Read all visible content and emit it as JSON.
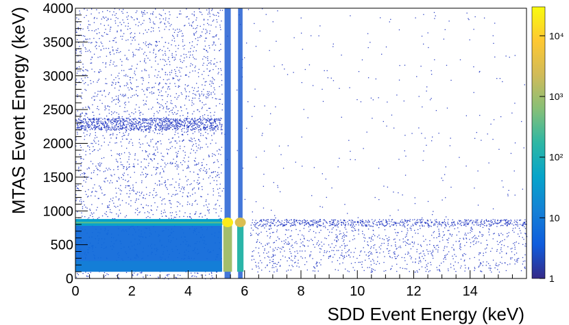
{
  "chart_data": {
    "type": "heatmap",
    "title": "",
    "xlabel": "SDD Event Energy (keV)",
    "ylabel": "MTAS Event Energy (keV)",
    "xlim": [
      0,
      16
    ],
    "ylim": [
      0,
      4000
    ],
    "x_ticks": [
      0,
      2,
      4,
      6,
      8,
      10,
      12,
      14
    ],
    "y_ticks": [
      0,
      500,
      1000,
      1500,
      2000,
      2500,
      3000,
      3500,
      4000
    ],
    "colorbar": {
      "scale": "log",
      "range": [
        1,
        30000
      ],
      "ticks": [
        {
          "value": 1,
          "label": "1"
        },
        {
          "value": 10,
          "label": "10"
        },
        {
          "value": 100,
          "label": "10²"
        },
        {
          "value": 1000,
          "label": "10³"
        },
        {
          "value": 10000,
          "label": "10⁴"
        }
      ],
      "colors": [
        "#352a87",
        "#0f5cdd",
        "#1481d6",
        "#06a4ca",
        "#2eb7a4",
        "#87bf77",
        "#d1bb59",
        "#fec832",
        "#f9fb0e"
      ]
    },
    "features": [
      {
        "kind": "band",
        "x_range": [
          0,
          16
        ],
        "y_range": [
          780,
          880
        ],
        "peak_count": 300
      },
      {
        "kind": "region",
        "x_range": [
          0,
          5.2
        ],
        "y_range": [
          100,
          780
        ],
        "peak_count": 40
      },
      {
        "kind": "vertical_line",
        "x": 5.4,
        "y_range": [
          0,
          4000
        ],
        "peak_count": 20000
      },
      {
        "kind": "vertical_line",
        "x": 5.85,
        "y_range": [
          0,
          4000
        ],
        "peak_count": 3000
      },
      {
        "kind": "band",
        "x_range": [
          0,
          5.2
        ],
        "y_range": [
          2200,
          2380
        ],
        "peak_count": 3
      },
      {
        "kind": "sparse",
        "x_range": [
          6.2,
          16
        ],
        "y_range": [
          100,
          780
        ],
        "peak_count": 2
      }
    ]
  }
}
